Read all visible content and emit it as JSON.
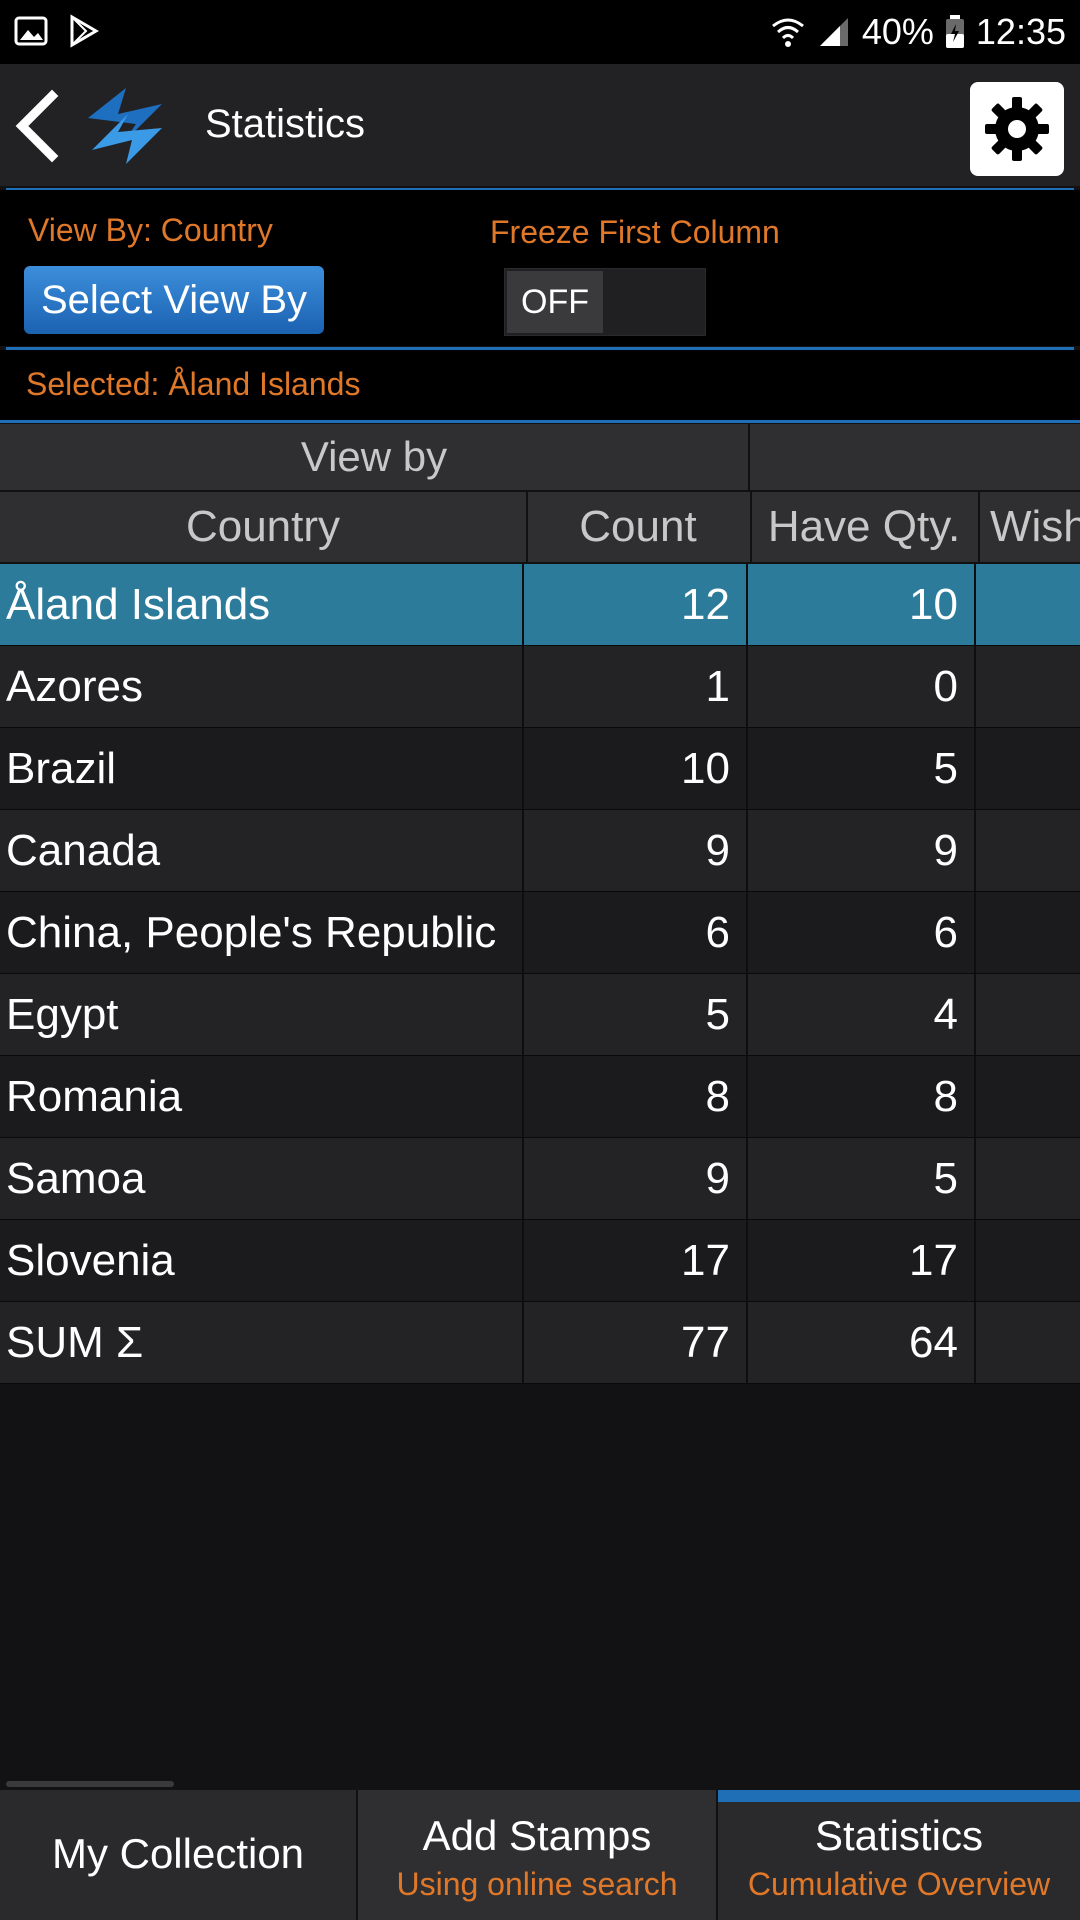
{
  "status": {
    "battery": "40%",
    "time": "12:35"
  },
  "appbar": {
    "title": "Statistics"
  },
  "controls": {
    "view_by": "View By: Country",
    "select_button": "Select View By",
    "freeze_label": "Freeze First Column",
    "freeze_state": "OFF"
  },
  "selected": "Selected: Åland Islands",
  "table": {
    "group_header": "View by",
    "columns": [
      "Country",
      "Count",
      "Have Qty.",
      "Wish"
    ],
    "rows": [
      {
        "country": "Åland Islands",
        "count": "12",
        "have": "10"
      },
      {
        "country": "Azores",
        "count": "1",
        "have": "0"
      },
      {
        "country": "Brazil",
        "count": "10",
        "have": "5"
      },
      {
        "country": "Canada",
        "count": "9",
        "have": "9"
      },
      {
        "country": "China, People's Republic",
        "count": "6",
        "have": "6"
      },
      {
        "country": "Egypt",
        "count": "5",
        "have": "4"
      },
      {
        "country": "Romania",
        "count": "8",
        "have": "8"
      },
      {
        "country": "Samoa",
        "count": "9",
        "have": "5"
      },
      {
        "country": "Slovenia",
        "count": "17",
        "have": "17"
      },
      {
        "country": "SUM Σ",
        "count": "77",
        "have": "64"
      }
    ]
  },
  "tabs": [
    {
      "label": "My Collection",
      "sub": ""
    },
    {
      "label": "Add Stamps",
      "sub": "Using online search"
    },
    {
      "label": "Statistics",
      "sub": "Cumulative Overview"
    }
  ]
}
